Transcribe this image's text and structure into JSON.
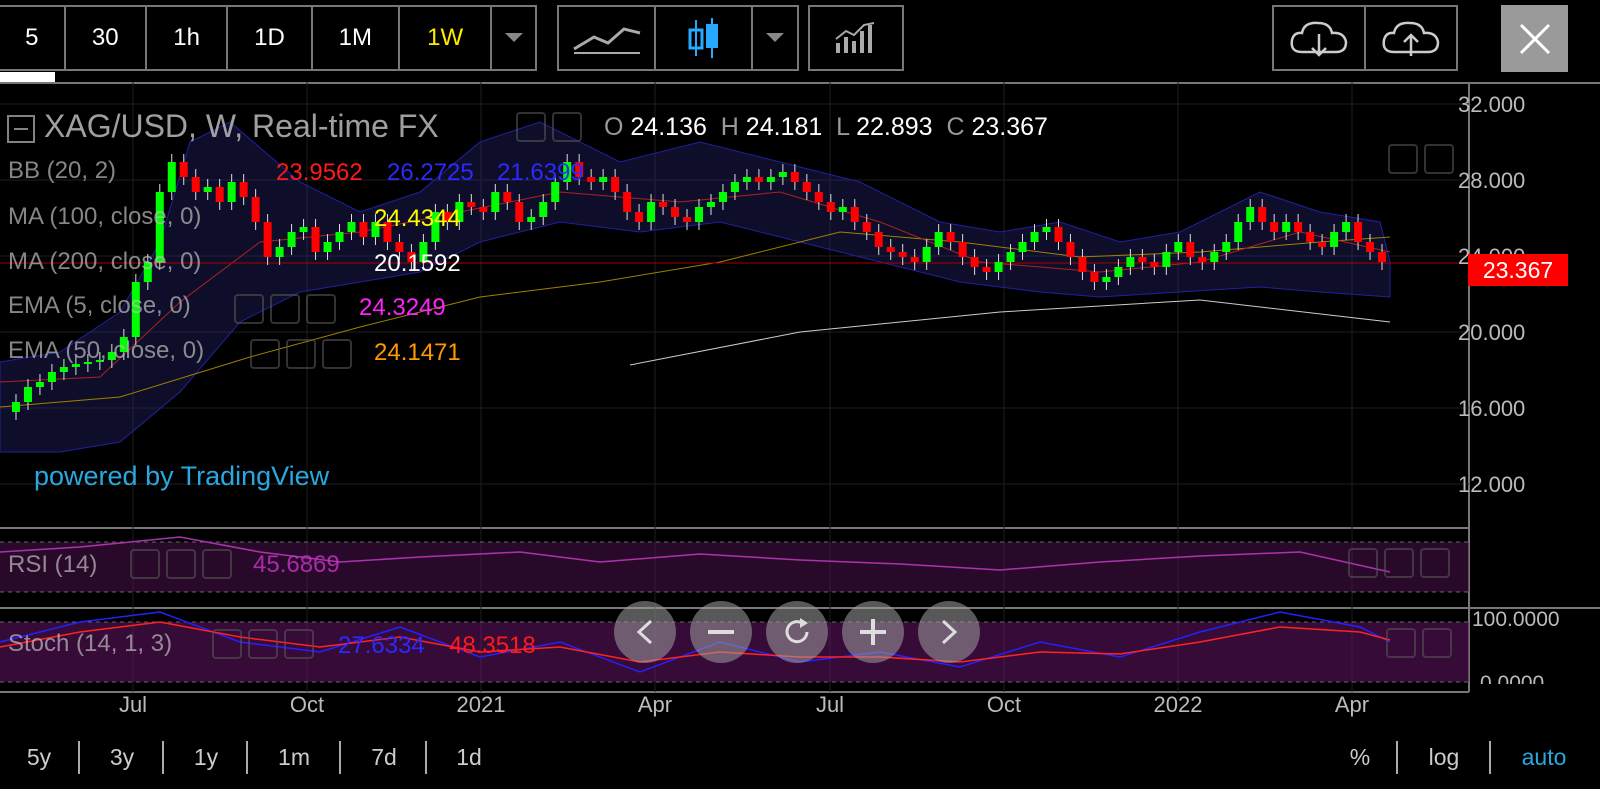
{
  "toolbar": {
    "intervals": [
      "5",
      "30",
      "1h",
      "1D",
      "1M",
      "1W"
    ],
    "active_interval": "1W",
    "icons": [
      "dropdown-icon",
      "line-chart-icon",
      "candlestick-icon",
      "dropdown-icon",
      "indicators-icon",
      "cloud-download-icon",
      "cloud-upload-icon",
      "close-icon"
    ]
  },
  "chart": {
    "title": "XAG/USD, W, Real-time FX",
    "ohlc": {
      "o_label": "O",
      "o": "24.136",
      "h_label": "H",
      "h": "24.181",
      "l_label": "L",
      "l": "22.893",
      "c_label": "C",
      "c": "23.367"
    },
    "indicators": [
      {
        "name": "BB (20, 2)",
        "values": [
          "23.9562",
          "26.2725",
          "21.6399"
        ],
        "colors": [
          "#ff1a1a",
          "#1a1aff",
          "#1a1aff"
        ]
      },
      {
        "name": "MA (100, close, 0)",
        "values": [
          "24.4344"
        ],
        "colors": [
          "#ffff00"
        ]
      },
      {
        "name": "MA (200, close, 0)",
        "values": [
          "20.1592"
        ],
        "colors": [
          "#ffffff"
        ]
      },
      {
        "name": "EMA (5, close, 0)",
        "values": [
          "24.3249"
        ],
        "colors": [
          "#ff22ff"
        ]
      },
      {
        "name": "EMA (50, close, 0)",
        "values": [
          "24.1471"
        ],
        "colors": [
          "#ff9900"
        ]
      }
    ],
    "watermark": "powered by TradingView",
    "price_axis": [
      "32.000",
      "28.000",
      "24.000",
      "20.000",
      "16.000",
      "12.000"
    ],
    "last_price": "23.367",
    "time_axis": [
      "Jul",
      "Oct",
      "2021",
      "Apr",
      "Jul",
      "Oct",
      "2022",
      "Apr"
    ],
    "accent_up": "#00ff00",
    "accent_down": "#ff0000"
  },
  "rsi": {
    "name": "RSI (14)",
    "value": "45.6869",
    "color": "#cc33cc"
  },
  "stoch": {
    "name": "Stoch (14, 1, 3)",
    "values": [
      "27.6334",
      "48.3518"
    ],
    "colors": [
      "#1a1aff",
      "#ff1a1a"
    ],
    "axis": [
      "100.0000",
      "0.0000"
    ]
  },
  "ranges": [
    "5y",
    "3y",
    "1y",
    "1m",
    "7d",
    "1d"
  ],
  "scale_modes": [
    "%",
    "log",
    "auto"
  ],
  "active_scale": "auto"
}
